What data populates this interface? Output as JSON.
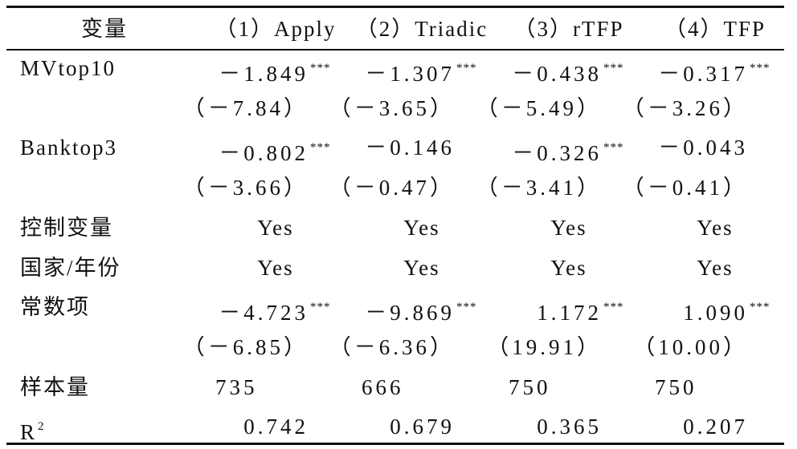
{
  "table": {
    "header": [
      "变量",
      "（1）Apply",
      "（2）Triadic",
      "（3）rTFP",
      "（4）TFP"
    ],
    "rows": [
      {
        "label": "MVtop10",
        "cells": [
          {
            "text": "－1.849",
            "sup": "***"
          },
          {
            "text": "－1.307",
            "sup": "***"
          },
          {
            "text": "－0.438",
            "sup": "***"
          },
          {
            "text": "－0.317",
            "sup": "***"
          }
        ]
      },
      {
        "cells": [
          {
            "text": "（－7.84）"
          },
          {
            "text": "（－3.65）"
          },
          {
            "text": "（－5.49）"
          },
          {
            "text": "（－3.26）"
          }
        ]
      },
      {
        "label": "Banktop3",
        "cells": [
          {
            "text": "－0.802",
            "sup": "***"
          },
          {
            "text": "－0.146"
          },
          {
            "text": "－0.326",
            "sup": "***"
          },
          {
            "text": "－0.043"
          }
        ]
      },
      {
        "cells": [
          {
            "text": "（－3.66）"
          },
          {
            "text": "（－0.47）"
          },
          {
            "text": "（－3.41）"
          },
          {
            "text": "（－0.41）"
          }
        ]
      },
      {
        "label": "控制变量",
        "cells": [
          {
            "text": "Yes"
          },
          {
            "text": "Yes"
          },
          {
            "text": "Yes"
          },
          {
            "text": "Yes"
          }
        ]
      },
      {
        "label": "国家/年份",
        "cells": [
          {
            "text": "Yes"
          },
          {
            "text": "Yes"
          },
          {
            "text": "Yes"
          },
          {
            "text": "Yes"
          }
        ]
      },
      {
        "label": "常数项",
        "cells": [
          {
            "text": "－4.723",
            "sup": "***"
          },
          {
            "text": "－9.869",
            "sup": "***"
          },
          {
            "text": "1.172",
            "sup": "***"
          },
          {
            "text": "1.090",
            "sup": "***"
          }
        ]
      },
      {
        "cells": [
          {
            "text": "（－6.85）"
          },
          {
            "text": "（－6.36）"
          },
          {
            "text": "（19.91）"
          },
          {
            "text": "（10.00）"
          }
        ]
      },
      {
        "label": "样本量",
        "cells": [
          {
            "text": "735"
          },
          {
            "text": "666"
          },
          {
            "text": "750"
          },
          {
            "text": "750"
          }
        ]
      },
      {
        "label": {
          "text": "R",
          "sup": "2"
        },
        "cells": [
          {
            "text": "0.742"
          },
          {
            "text": "0.679"
          },
          {
            "text": "0.365"
          },
          {
            "text": "0.207"
          }
        ]
      }
    ]
  }
}
